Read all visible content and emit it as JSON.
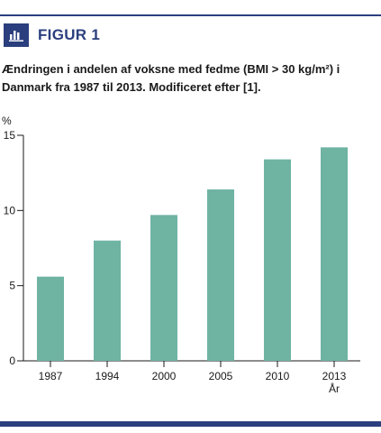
{
  "figure": {
    "label": "FIGUR 1",
    "caption": "Ændringen i andelen af voksne med fedme (BMI > 30 kg/m²) i Danmark fra 1987 til 2013. Modificeret efter [1].",
    "accent_color": "#2b3f7e",
    "icon": "bar-chart-icon"
  },
  "chart_data": {
    "type": "bar",
    "categories": [
      "1987",
      "1994",
      "2000",
      "2005",
      "2010",
      "2013"
    ],
    "values": [
      5.6,
      8.0,
      9.7,
      11.4,
      13.4,
      14.2
    ],
    "xlabel": "År",
    "ylabel": "%",
    "ylim": [
      0,
      15
    ],
    "yticks": [
      0,
      5,
      10,
      15
    ],
    "bar_color": "#6fb3a3",
    "grid": false
  }
}
